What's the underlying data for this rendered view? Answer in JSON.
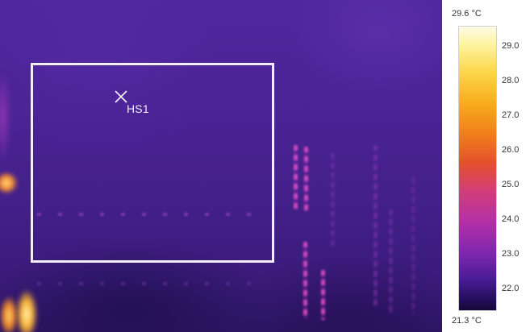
{
  "thermal_image": {
    "roi_marker_label": "HS1"
  },
  "colorbar": {
    "max_label": "29.6 °C",
    "min_label": "21.3 °C",
    "ticks": [
      "29.0",
      "28.0",
      "27.0",
      "26.0",
      "25.0",
      "24.0",
      "23.0",
      "22.0"
    ],
    "palette": "iron",
    "colors": {
      "high": "#fdfbe6",
      "mid_high": "#f8ac1c",
      "mid": "#d23e79",
      "low": "#4b1c96",
      "lowest": "#140838"
    }
  },
  "overlay": {
    "roi_border_color": "#f4eefc",
    "marker_icon": "x-crosshair-icon"
  }
}
